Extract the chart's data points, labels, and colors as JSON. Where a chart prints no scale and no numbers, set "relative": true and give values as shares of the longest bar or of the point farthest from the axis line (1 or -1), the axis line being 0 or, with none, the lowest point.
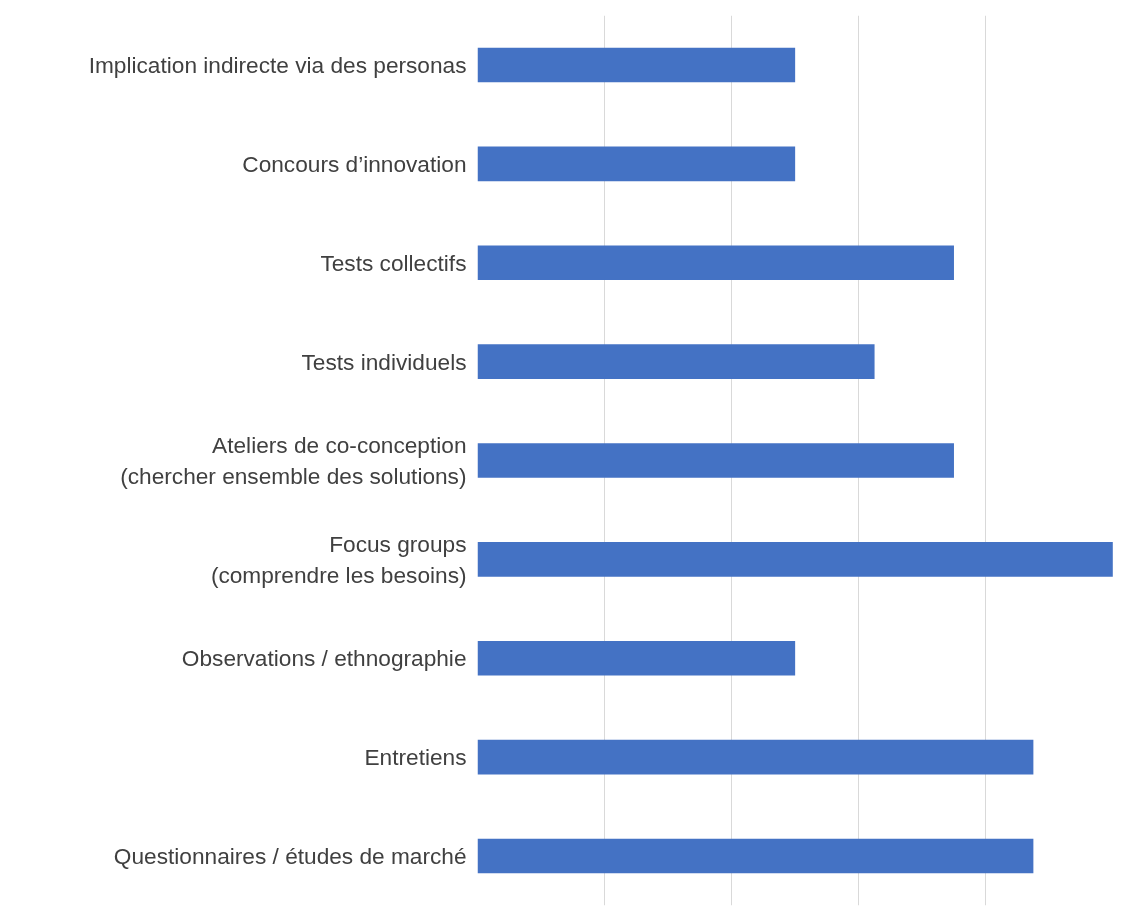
{
  "chart_data": {
    "type": "bar",
    "orientation": "horizontal",
    "relative": true,
    "grid": "x",
    "color": "#4472c4",
    "categories": [
      "Implication indirecte via des personas",
      "Concours d’innovation",
      "Tests collectifs",
      "Tests individuels",
      "Ateliers de co-conception\n(chercher ensemble des solutions)",
      "Focus groups\n(comprendre les besoins)",
      "Observations / ethnographie",
      "Entretiens",
      "Questionnaires / études de marché"
    ],
    "values": [
      0.5,
      0.5,
      0.75,
      0.625,
      0.75,
      1,
      0.5,
      0.875,
      0.875
    ]
  }
}
